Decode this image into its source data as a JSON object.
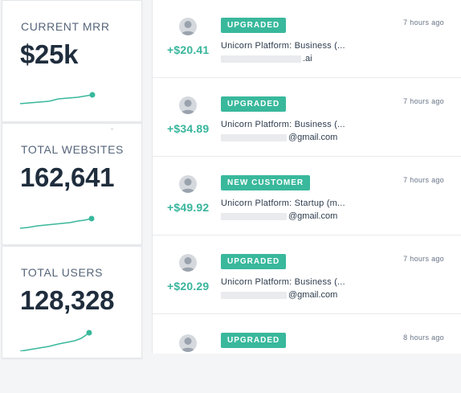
{
  "metrics": [
    {
      "label": "CURRENT MRR",
      "value": "$25k"
    },
    {
      "label": "TOTAL WEBSITES",
      "value": "162,641"
    },
    {
      "label": "TOTAL USERS",
      "value": "128,328"
    }
  ],
  "colors": {
    "accent": "#39b89c",
    "amount": "#38b59c",
    "text": "#243447",
    "muted": "#677486"
  },
  "feed": [
    {
      "badge": "UPGRADED",
      "amount": "+$20.41",
      "plan": "Unicorn Platform: Business (...",
      "email_suffix": ".ai",
      "time": "7 hours ago",
      "avatar_icon": "user-avatar-icon"
    },
    {
      "badge": "UPGRADED",
      "amount": "+$34.89",
      "plan": "Unicorn Platform: Business (...",
      "email_suffix": "@gmail.com",
      "time": "7 hours ago",
      "avatar_icon": "user-avatar-icon"
    },
    {
      "badge": "NEW CUSTOMER",
      "amount": "+$49.92",
      "plan": "Unicorn Platform: Startup (m...",
      "email_suffix": "@gmail.com",
      "time": "7 hours ago",
      "avatar_icon": "user-avatar-icon"
    },
    {
      "badge": "UPGRADED",
      "amount": "+$20.29",
      "plan": "Unicorn Platform: Business (...",
      "email_suffix": "@gmail.com",
      "time": "7 hours ago",
      "avatar_icon": "user-avatar-icon"
    },
    {
      "badge": "UPGRADED",
      "amount": "",
      "plan": "",
      "email_suffix": "",
      "time": "8 hours ago",
      "avatar_icon": "user-avatar-icon"
    }
  ]
}
